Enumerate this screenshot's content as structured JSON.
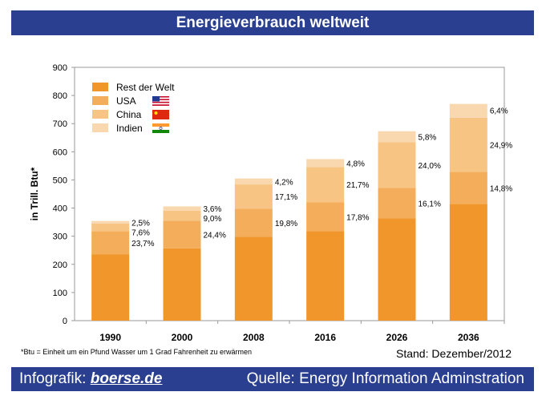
{
  "header": {
    "title": "Energieverbrauch weltweit"
  },
  "footnote": "*Btu = Einheit um ein Pfund Wasser um 1 Grad Fahrenheit zu erwärmen",
  "stand": "Stand: Dezember/2012",
  "footer": {
    "prefix": "Infografik: ",
    "brand": "boerse.de",
    "source": "Quelle: Energy Information Adminstration"
  },
  "colors": {
    "rest": "#f0962a",
    "usa": "#f4ad5a",
    "china": "#f7c484",
    "indien": "#f9d8b0",
    "brand_bar": "#2a3f8f"
  },
  "chart_data": {
    "type": "bar",
    "stacked": true,
    "ylabel": "in Trill. Btu*",
    "ylim": [
      0,
      900
    ],
    "yticks": [
      "0",
      "100",
      "200",
      "300",
      "400",
      "500",
      "600",
      "700",
      "800",
      "900"
    ],
    "categories": [
      "1990",
      "2000",
      "2008",
      "2016",
      "2026",
      "2036"
    ],
    "legend_position": "top-left",
    "series": [
      {
        "name": "Rest der Welt",
        "color_key": "rest",
        "values": [
          235,
          257,
          298,
          318,
          363,
          415
        ]
      },
      {
        "name": "USA",
        "color_key": "usa",
        "values": [
          83,
          98,
          100,
          103,
          109,
          114
        ],
        "labels": [
          "23,7%",
          "24,4%",
          "19,8%",
          "17,8%",
          "16,1%",
          "14,8%"
        ]
      },
      {
        "name": "China",
        "color_key": "china",
        "values": [
          27,
          36,
          86,
          125,
          162,
          192
        ],
        "labels": [
          "7,6%",
          "9,0%",
          "17,1%",
          "21,7%",
          "24,0%",
          "24,9%"
        ]
      },
      {
        "name": "Indien",
        "color_key": "indien",
        "values": [
          9,
          15,
          21,
          28,
          39,
          49
        ],
        "labels": [
          "2,5%",
          "3,6%",
          "4,2%",
          "4,8%",
          "5,8%",
          "6,4%"
        ]
      }
    ],
    "legend_flags": [
      "",
      "usa-flag",
      "china-flag",
      "india-flag"
    ]
  }
}
